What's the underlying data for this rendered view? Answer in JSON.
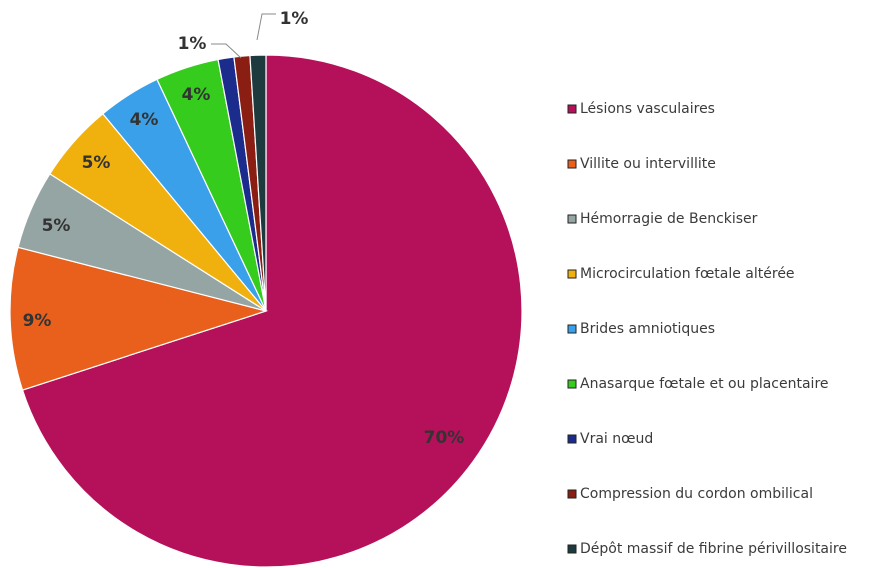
{
  "chart_data": {
    "type": "pie",
    "title": "",
    "legend_position": "right",
    "slices": [
      {
        "label": "Lésions vasculaires",
        "value": 70,
        "value_label": "70%",
        "color": "#b5105a"
      },
      {
        "label": "Villite ou intervillite",
        "value": 9,
        "value_label": "9%",
        "color": "#e8601c"
      },
      {
        "label": "Hémorragie de Benckiser",
        "value": 5,
        "value_label": "5%",
        "color": "#95a5a3"
      },
      {
        "label": "Microcirculation fœtale altérée",
        "value": 5,
        "value_label": "5%",
        "color": "#f0b10f"
      },
      {
        "label": "Brides amniotiques",
        "value": 4,
        "value_label": "4%",
        "color": "#3aa0ea"
      },
      {
        "label": "Anasarque fœtale et ou placentaire",
        "value": 4,
        "value_label": "4%",
        "color": "#35cc1d"
      },
      {
        "label": "Vrai nœud",
        "value": 1,
        "value_label": "",
        "color": "#1b2c8c"
      },
      {
        "label": "Compression du cordon ombilical",
        "value": 1,
        "value_label": "1%",
        "color": "#8b1e12"
      },
      {
        "label": "Dépôt massif de fibrine périvillositaire",
        "value": 1,
        "value_label": "1%",
        "color": "#1d3b3f"
      }
    ]
  }
}
